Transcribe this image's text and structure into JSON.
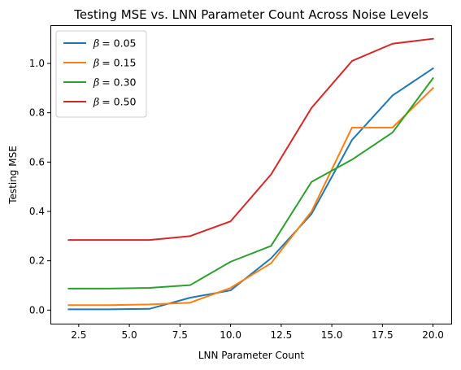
{
  "chart_data": {
    "type": "line",
    "title": "Testing MSE vs. LNN Parameter Count Across Noise Levels",
    "xlabel": "LNN Parameter Count",
    "ylabel": "Testing MSE",
    "xlim": [
      1.1,
      20.9
    ],
    "ylim": [
      -0.055,
      1.155
    ],
    "xticks": [
      2.5,
      5.0,
      7.5,
      10.0,
      12.5,
      15.0,
      17.5,
      20.0
    ],
    "xtick_labels": [
      "2.5",
      "5.0",
      "7.5",
      "10.0",
      "12.5",
      "15.0",
      "17.5",
      "20.0"
    ],
    "yticks": [
      0.0,
      0.2,
      0.4,
      0.6,
      0.8,
      1.0
    ],
    "ytick_labels": [
      "0.0",
      "0.2",
      "0.4",
      "0.6",
      "0.8",
      "1.0"
    ],
    "grid": false,
    "legend_position": "upper-left",
    "x": [
      2,
      4,
      6,
      8,
      10,
      12,
      14,
      16,
      18,
      20
    ],
    "series": [
      {
        "name": "β = 0.05",
        "greek": "β",
        "value": "= 0.05",
        "color": "#1f77b4",
        "values": [
          0.003,
          0.003,
          0.005,
          0.05,
          0.08,
          0.21,
          0.39,
          0.69,
          0.87,
          0.98
        ]
      },
      {
        "name": "β = 0.15",
        "greek": "β",
        "value": "= 0.15",
        "color": "#ff7f0e",
        "values": [
          0.02,
          0.02,
          0.023,
          0.03,
          0.09,
          0.19,
          0.4,
          0.74,
          0.74,
          0.9
        ]
      },
      {
        "name": "β = 0.30",
        "greek": "β",
        "value": "= 0.30",
        "color": "#2ca02c",
        "values": [
          0.087,
          0.087,
          0.09,
          0.101,
          0.196,
          0.26,
          0.52,
          0.61,
          0.72,
          0.94
        ]
      },
      {
        "name": "β = 0.50",
        "greek": "β",
        "value": "= 0.50",
        "color": "#d62728",
        "values": [
          0.284,
          0.284,
          0.284,
          0.3,
          0.36,
          0.55,
          0.82,
          1.01,
          1.08,
          1.1
        ]
      }
    ]
  }
}
